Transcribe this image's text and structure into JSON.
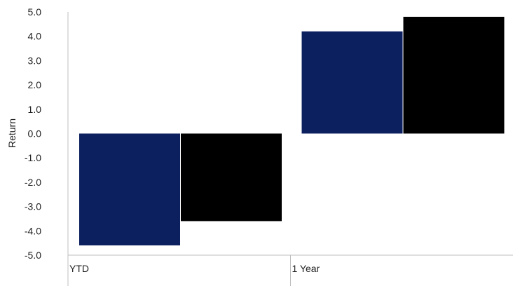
{
  "chart_data": {
    "type": "bar",
    "title": "",
    "xlabel": "",
    "ylabel": "Return",
    "ylim": [
      -5.0,
      5.0
    ],
    "yticks": [
      "5.0",
      "4.0",
      "3.0",
      "2.0",
      "1.0",
      "0.0",
      "-1.0",
      "-2.0",
      "-3.0",
      "-4.0",
      "-5.0"
    ],
    "categories": [
      "YTD",
      "1 Year"
    ],
    "series": [
      {
        "values": [
          -4.6,
          4.2
        ],
        "color": "#0c1f5e"
      },
      {
        "values": [
          -3.6,
          4.8
        ],
        "color": "#000000"
      }
    ],
    "grid": false,
    "legend": "none"
  }
}
